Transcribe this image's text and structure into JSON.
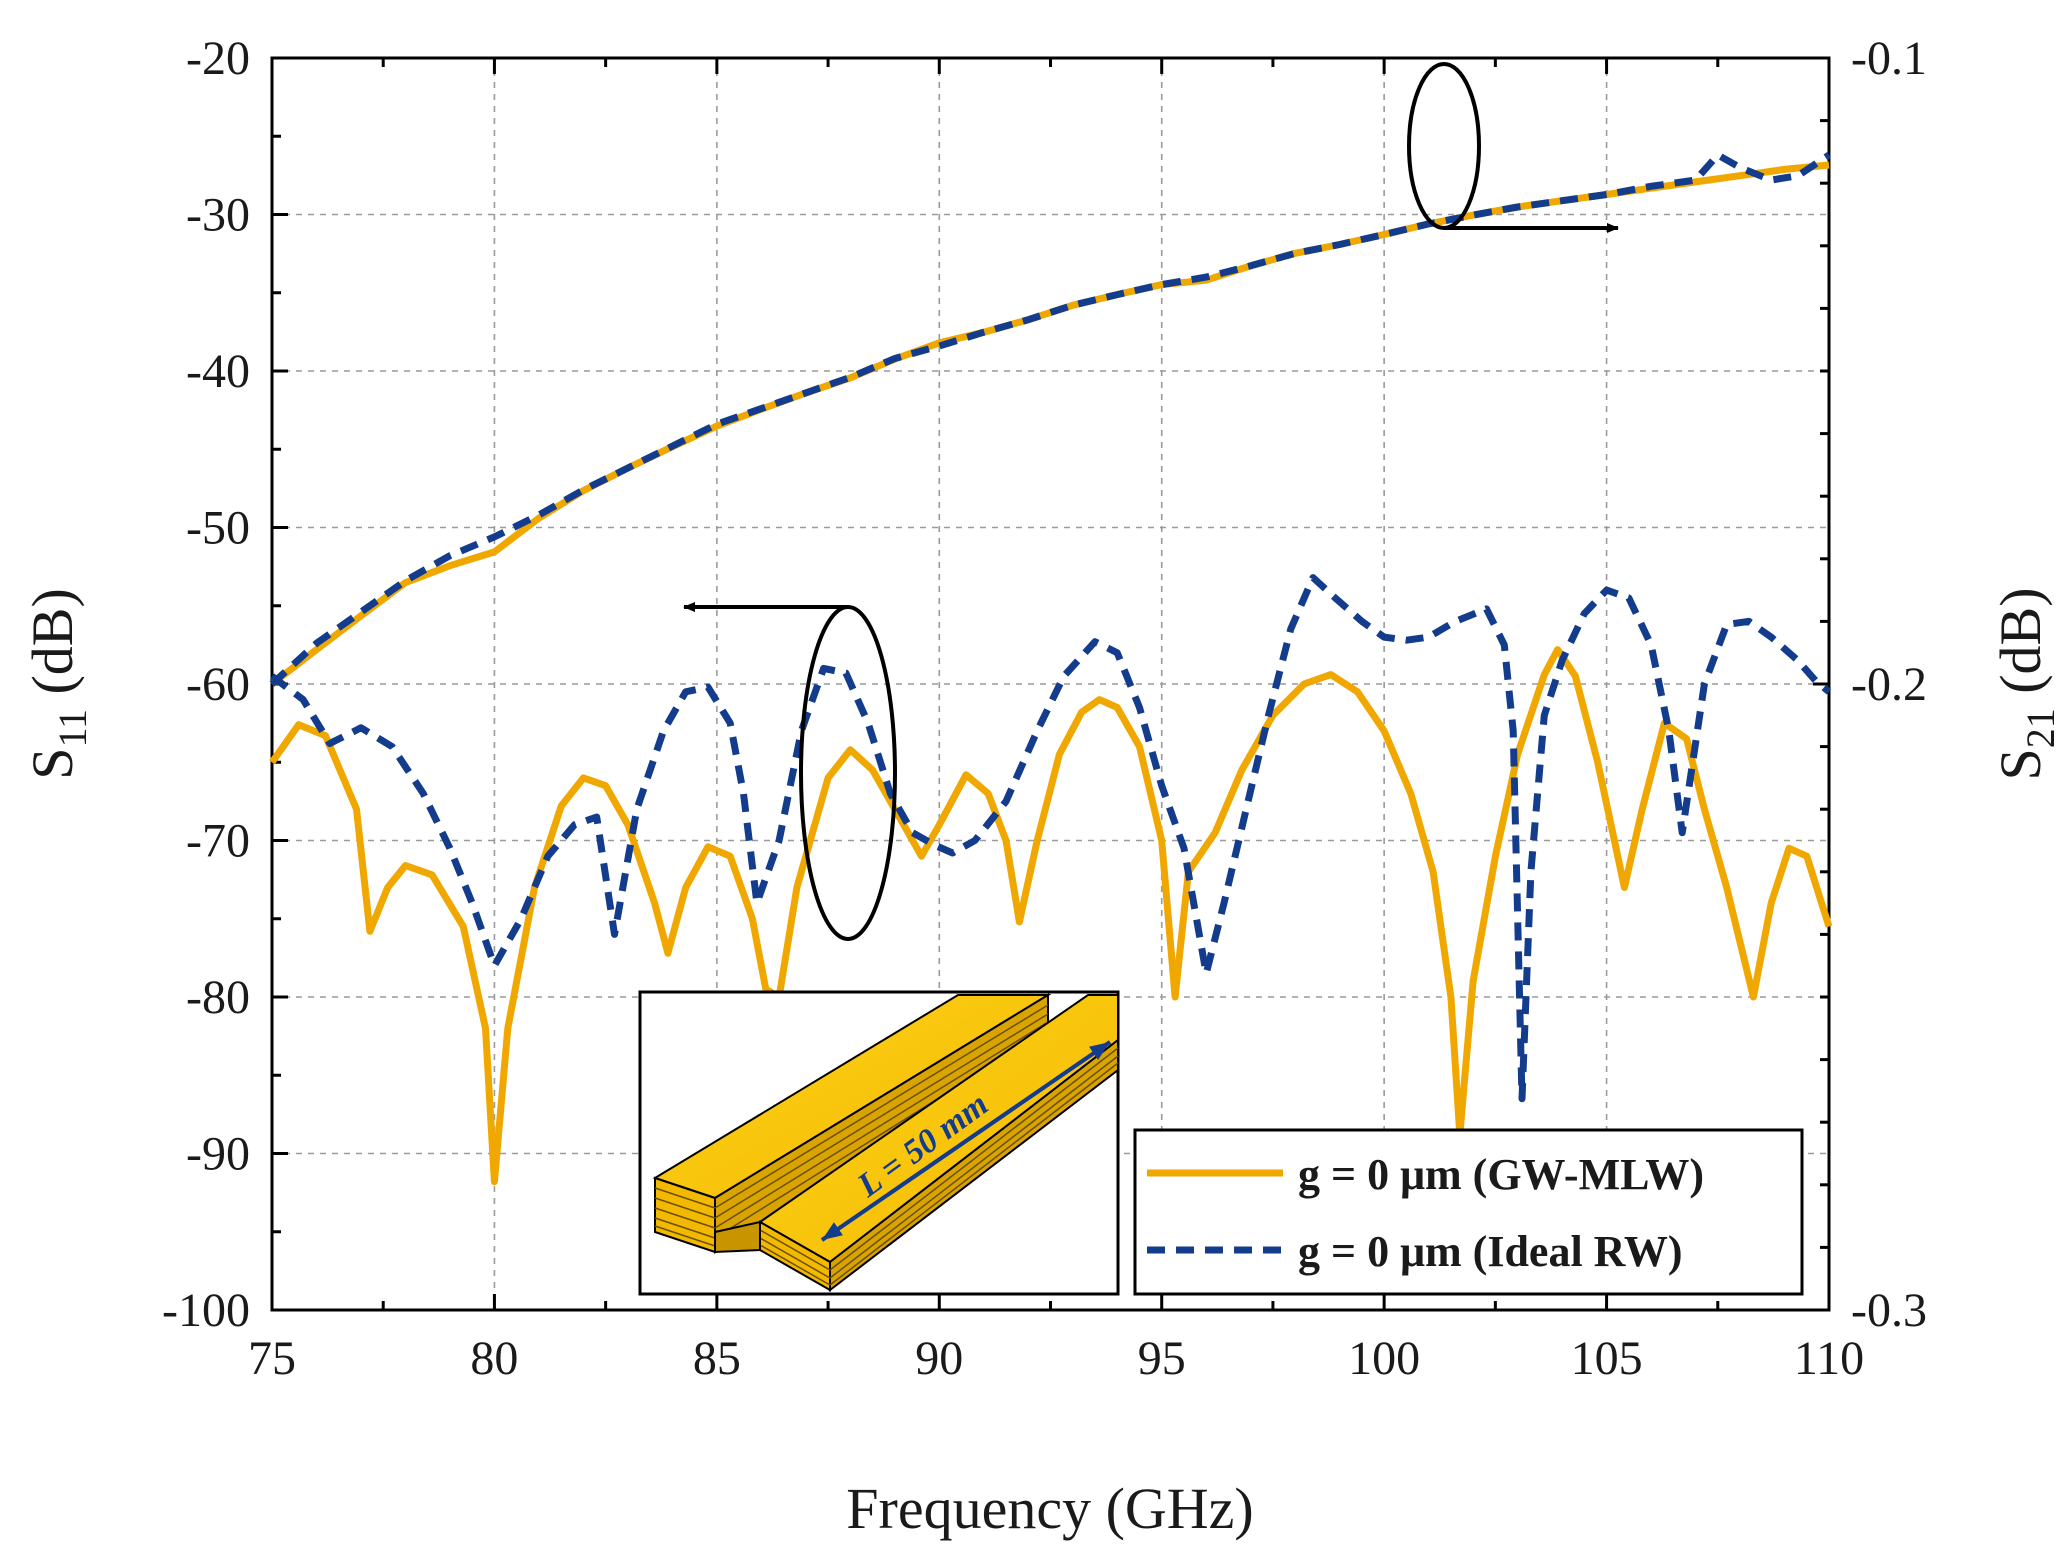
{
  "chart_data": {
    "type": "line",
    "xlabel": "Frequency (GHz)",
    "ylabel": {
      "main": "S",
      "sub": "11",
      "unit": " (dB)"
    },
    "y2label": {
      "main": "S",
      "sub": "21",
      "unit": " (dB)"
    },
    "xlim": [
      75,
      110
    ],
    "ylim": [
      -100,
      -20
    ],
    "y2lim": [
      -0.3,
      -0.1
    ],
    "grid": true,
    "x_ticks": [
      "75",
      "80",
      "85",
      "90",
      "95",
      "100",
      "105",
      "110"
    ],
    "y_ticks": [
      "-20",
      "-30",
      "-40",
      "-50",
      "-60",
      "-70",
      "-80",
      "-90",
      "-100"
    ],
    "y2_ticks": [
      "-0.1",
      "-0.2",
      "-0.3"
    ],
    "legend": {
      "position": "bottom-right",
      "entries": [
        "g = 0 μm (GW-MLW)",
        "g = 0 μm (Ideal RW)"
      ]
    },
    "series": [
      {
        "name": "g = 0 μm (GW-MLW)",
        "axis": "right",
        "quantity": "S21",
        "color": "#f0a800",
        "style": "solid",
        "points": [
          [
            75,
            -0.2
          ],
          [
            76,
            -0.1945
          ],
          [
            77,
            -0.1891
          ],
          [
            78,
            -0.1838
          ],
          [
            79,
            -0.1811
          ],
          [
            80,
            -0.1789
          ],
          [
            81,
            -0.1735
          ],
          [
            82,
            -0.1691
          ],
          [
            83,
            -0.1655
          ],
          [
            84,
            -0.1621
          ],
          [
            85,
            -0.1588
          ],
          [
            86,
            -0.1561
          ],
          [
            87,
            -0.1535
          ],
          [
            88,
            -0.1511
          ],
          [
            89,
            -0.1481
          ],
          [
            90,
            -0.1455
          ],
          [
            91,
            -0.1438
          ],
          [
            92,
            -0.1418
          ],
          [
            93,
            -0.1395
          ],
          [
            94,
            -0.1378
          ],
          [
            95,
            -0.1362
          ],
          [
            96,
            -0.1355
          ],
          [
            97,
            -0.1332
          ],
          [
            98,
            -0.1312
          ],
          [
            99,
            -0.1298
          ],
          [
            100,
            -0.1282
          ],
          [
            101,
            -0.1265
          ],
          [
            102,
            -0.1251
          ],
          [
            103,
            -0.1238
          ],
          [
            104,
            -0.1228
          ],
          [
            105,
            -0.1218
          ],
          [
            106,
            -0.1208
          ],
          [
            107,
            -0.1198
          ],
          [
            108,
            -0.1188
          ],
          [
            109,
            -0.1178
          ],
          [
            110,
            -0.1171
          ]
        ]
      },
      {
        "name": "g = 0 μm (Ideal RW)",
        "axis": "right",
        "quantity": "S21",
        "color": "#143c8c",
        "style": "dashed",
        "points": [
          [
            75,
            -0.2
          ],
          [
            76,
            -0.1935
          ],
          [
            77,
            -0.1885
          ],
          [
            78,
            -0.1835
          ],
          [
            79,
            -0.1795
          ],
          [
            80,
            -0.1765
          ],
          [
            81,
            -0.173
          ],
          [
            82,
            -0.169
          ],
          [
            83,
            -0.1655
          ],
          [
            84,
            -0.162
          ],
          [
            85,
            -0.1585
          ],
          [
            86,
            -0.156
          ],
          [
            87,
            -0.1535
          ],
          [
            88,
            -0.151
          ],
          [
            89,
            -0.148
          ],
          [
            90,
            -0.146
          ],
          [
            91,
            -0.1438
          ],
          [
            92,
            -0.1418
          ],
          [
            93,
            -0.1395
          ],
          [
            94,
            -0.1378
          ],
          [
            95,
            -0.1362
          ],
          [
            96,
            -0.135
          ],
          [
            97,
            -0.1332
          ],
          [
            98,
            -0.1312
          ],
          [
            99,
            -0.1298
          ],
          [
            100,
            -0.1282
          ],
          [
            101,
            -0.1265
          ],
          [
            102,
            -0.1251
          ],
          [
            103,
            -0.1238
          ],
          [
            104,
            -0.1228
          ],
          [
            105,
            -0.1218
          ],
          [
            106,
            -0.1205
          ],
          [
            107,
            -0.1195
          ],
          [
            107.5,
            -0.1155
          ],
          [
            108,
            -0.1175
          ],
          [
            108.7,
            -0.1195
          ],
          [
            109.3,
            -0.1188
          ],
          [
            110,
            -0.1155
          ]
        ]
      },
      {
        "name": "g = 0 μm (GW-MLW)",
        "axis": "left",
        "quantity": "S11",
        "color": "#f0a800",
        "style": "solid",
        "points": [
          [
            75,
            -65
          ],
          [
            75.6,
            -62.6
          ],
          [
            76.2,
            -63.3
          ],
          [
            76.9,
            -68
          ],
          [
            77.2,
            -75.8
          ],
          [
            77.6,
            -73
          ],
          [
            78,
            -71.6
          ],
          [
            78.6,
            -72.2
          ],
          [
            79.3,
            -75.5
          ],
          [
            79.8,
            -82
          ],
          [
            80,
            -91.8
          ],
          [
            80.3,
            -82
          ],
          [
            80.9,
            -73
          ],
          [
            81.5,
            -67.8
          ],
          [
            82,
            -66
          ],
          [
            82.5,
            -66.5
          ],
          [
            83,
            -69
          ],
          [
            83.6,
            -74
          ],
          [
            83.9,
            -77.2
          ],
          [
            84.3,
            -73
          ],
          [
            84.8,
            -70.4
          ],
          [
            85.3,
            -71
          ],
          [
            85.8,
            -75
          ],
          [
            86.1,
            -79.5
          ],
          [
            86.4,
            -80
          ],
          [
            86.8,
            -73
          ],
          [
            87.5,
            -66
          ],
          [
            88,
            -64.2
          ],
          [
            88.5,
            -65.5
          ],
          [
            89.2,
            -69
          ],
          [
            89.6,
            -71
          ],
          [
            90,
            -69
          ],
          [
            90.6,
            -65.8
          ],
          [
            91.1,
            -67
          ],
          [
            91.5,
            -70
          ],
          [
            91.8,
            -75.2
          ],
          [
            92.2,
            -70
          ],
          [
            92.7,
            -64.5
          ],
          [
            93.2,
            -61.8
          ],
          [
            93.6,
            -61
          ],
          [
            94,
            -61.5
          ],
          [
            94.5,
            -64
          ],
          [
            95,
            -70
          ],
          [
            95.3,
            -80
          ],
          [
            95.6,
            -72
          ],
          [
            96.2,
            -69.5
          ],
          [
            96.8,
            -65.5
          ],
          [
            97.5,
            -62
          ],
          [
            98.2,
            -60
          ],
          [
            98.8,
            -59.4
          ],
          [
            99.4,
            -60.5
          ],
          [
            100,
            -63
          ],
          [
            100.6,
            -67
          ],
          [
            101.1,
            -72
          ],
          [
            101.5,
            -80
          ],
          [
            101.7,
            -88.8
          ],
          [
            102,
            -79
          ],
          [
            102.5,
            -71
          ],
          [
            103,
            -64.5
          ],
          [
            103.6,
            -59.4
          ],
          [
            103.9,
            -57.8
          ],
          [
            104.3,
            -59.5
          ],
          [
            104.8,
            -65
          ],
          [
            105.4,
            -73
          ],
          [
            105.8,
            -68
          ],
          [
            106.3,
            -62.5
          ],
          [
            106.8,
            -63.5
          ],
          [
            107.2,
            -68
          ],
          [
            107.7,
            -73
          ],
          [
            108.3,
            -80
          ],
          [
            108.7,
            -74
          ],
          [
            109.1,
            -70.5
          ],
          [
            109.5,
            -71
          ],
          [
            110,
            -75.5
          ]
        ]
      },
      {
        "name": "g = 0 μm (Ideal RW)",
        "axis": "left",
        "quantity": "S11",
        "color": "#143c8c",
        "style": "dashed",
        "points": [
          [
            75,
            -59.5
          ],
          [
            75.7,
            -61
          ],
          [
            76.3,
            -63.8
          ],
          [
            77,
            -62.8
          ],
          [
            77.7,
            -64
          ],
          [
            78.4,
            -67
          ],
          [
            79,
            -70.5
          ],
          [
            79.5,
            -74
          ],
          [
            80,
            -78
          ],
          [
            80.6,
            -75
          ],
          [
            81.2,
            -71
          ],
          [
            81.8,
            -69
          ],
          [
            82.3,
            -68.5
          ],
          [
            82.7,
            -76
          ],
          [
            83.2,
            -68
          ],
          [
            83.8,
            -63
          ],
          [
            84.3,
            -60.5
          ],
          [
            84.8,
            -60.2
          ],
          [
            85.3,
            -62.5
          ],
          [
            85.6,
            -67
          ],
          [
            85.9,
            -74
          ],
          [
            86.4,
            -70
          ],
          [
            86.9,
            -63
          ],
          [
            87.4,
            -59
          ],
          [
            87.9,
            -59.3
          ],
          [
            88.4,
            -62.5
          ],
          [
            88.9,
            -67
          ],
          [
            89.4,
            -69.5
          ],
          [
            89.9,
            -70.3
          ],
          [
            90.3,
            -70.8
          ],
          [
            90.8,
            -70
          ],
          [
            91.5,
            -67.5
          ],
          [
            92.2,
            -63
          ],
          [
            92.8,
            -59.5
          ],
          [
            93.5,
            -57.3
          ],
          [
            94,
            -58
          ],
          [
            94.5,
            -61.5
          ],
          [
            95,
            -66.5
          ],
          [
            95.5,
            -70.5
          ],
          [
            96,
            -78.5
          ],
          [
            96.4,
            -74
          ],
          [
            96.9,
            -68
          ],
          [
            97.4,
            -62
          ],
          [
            97.9,
            -56.5
          ],
          [
            98.4,
            -53.2
          ],
          [
            98.9,
            -54.5
          ],
          [
            99.5,
            -56
          ],
          [
            100,
            -57
          ],
          [
            100.5,
            -57.2
          ],
          [
            101,
            -57
          ],
          [
            101.6,
            -56
          ],
          [
            102.3,
            -55.2
          ],
          [
            102.7,
            -57.5
          ],
          [
            102.9,
            -63
          ],
          [
            103.1,
            -86.5
          ],
          [
            103.3,
            -72
          ],
          [
            103.6,
            -62
          ],
          [
            104,
            -58.5
          ],
          [
            104.5,
            -55.5
          ],
          [
            105,
            -54
          ],
          [
            105.5,
            -54.5
          ],
          [
            106,
            -57.5
          ],
          [
            106.4,
            -63
          ],
          [
            106.7,
            -69.5
          ],
          [
            107.2,
            -60
          ],
          [
            107.7,
            -56.2
          ],
          [
            108.2,
            -56
          ],
          [
            108.7,
            -57
          ],
          [
            109.3,
            -58.5
          ],
          [
            109.7,
            -59.8
          ],
          [
            110,
            -60.5
          ]
        ]
      }
    ],
    "annotations": [
      {
        "type": "ellipse-arrow",
        "refers_to": "S21 curves",
        "arrow_direction": "right"
      },
      {
        "type": "ellipse-arrow",
        "refers_to": "S11 curves",
        "arrow_direction": "left"
      }
    ],
    "inset": {
      "label": "L = 50 mm",
      "description": "gold layered waveguide illustration"
    }
  }
}
